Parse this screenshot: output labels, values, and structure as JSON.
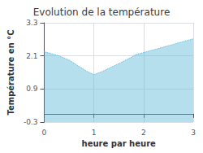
{
  "chart_data": {
    "type": "area",
    "title": "Evolution de la température",
    "xlabel": "heure par heure",
    "ylabel": "Température en °C",
    "x": [
      0,
      0.15,
      0.3,
      0.5,
      0.7,
      0.85,
      1.0,
      1.15,
      1.3,
      1.5,
      1.7,
      1.85,
      2.0,
      2.2,
      2.4,
      2.6,
      2.8,
      3.0
    ],
    "values": [
      2.25,
      2.18,
      2.1,
      1.95,
      1.72,
      1.55,
      1.42,
      1.52,
      1.65,
      1.82,
      2.0,
      2.15,
      2.22,
      2.32,
      2.42,
      2.52,
      2.62,
      2.72
    ],
    "xlim": [
      0,
      3
    ],
    "xticks": [
      0,
      1,
      2,
      3
    ],
    "ylim": [
      -0.3,
      3.3
    ],
    "yticks": [
      -0.3,
      0.9,
      2.1,
      3.3
    ],
    "color": "#5ab8d8",
    "line_style": "dotted",
    "grid": true
  }
}
